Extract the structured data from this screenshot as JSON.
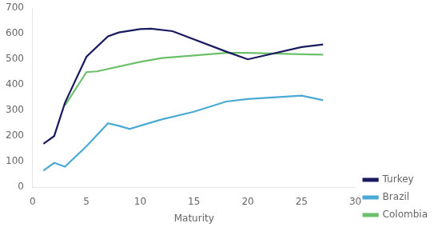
{
  "chart_data": {
    "type": "line",
    "xlabel": "Maturity",
    "xlim": [
      0,
      30
    ],
    "ylim": [
      0,
      700
    ],
    "xticks": [
      0,
      5,
      10,
      15,
      20,
      25,
      30
    ],
    "yticks": [
      0,
      100,
      200,
      300,
      400,
      500,
      600,
      700
    ],
    "grid": false,
    "legend": "lower right",
    "series": [
      {
        "name": "Turkey",
        "color": "#1a1a5e",
        "x": [
          1,
          2,
          3,
          5,
          7,
          8,
          10,
          11,
          13,
          18,
          20,
          25,
          27
        ],
        "values": [
          170,
          200,
          330,
          510,
          590,
          605,
          618,
          620,
          610,
          530,
          500,
          548,
          558
        ]
      },
      {
        "name": "Brazil",
        "color": "#4baad4",
        "x": [
          1,
          2,
          3,
          5,
          7,
          8,
          9,
          12,
          15,
          18,
          20,
          25,
          27
        ],
        "values": [
          65,
          95,
          80,
          160,
          250,
          240,
          228,
          265,
          295,
          335,
          345,
          358,
          340
        ]
      },
      {
        "name": "Colombia",
        "color": "#6cc06c",
        "x": [
          3,
          5,
          6,
          10,
          12,
          15,
          18,
          20,
          25,
          27
        ],
        "values": [
          320,
          450,
          453,
          490,
          505,
          515,
          525,
          525,
          520,
          518
        ]
      }
    ]
  }
}
